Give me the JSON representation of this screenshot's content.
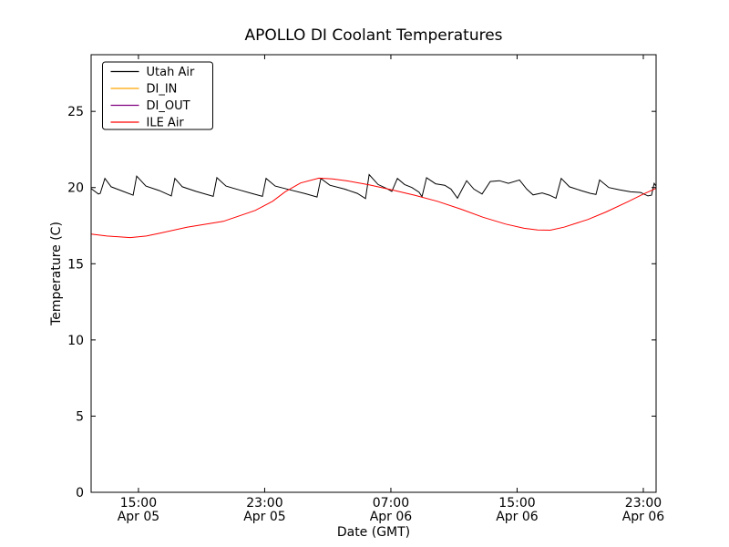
{
  "window": {
    "background": "#ffffff"
  },
  "chart_data": {
    "type": "line",
    "title": "APOLLO DI Coolant Temperatures",
    "xlabel": "Date (GMT)",
    "ylabel": "Temperature (C)",
    "x_unit": "hours since Apr 05 00:00 GMT",
    "xlim": [
      12.0,
      47.81
    ],
    "ylim": [
      0,
      28.72
    ],
    "yticks": [
      0,
      5,
      10,
      15,
      20,
      25
    ],
    "xticks": [
      {
        "t": 15,
        "time": "15:00",
        "date": "Apr 05"
      },
      {
        "t": 23,
        "time": "23:00",
        "date": "Apr 05"
      },
      {
        "t": 31,
        "time": "07:00",
        "date": "Apr 06"
      },
      {
        "t": 39,
        "time": "15:00",
        "date": "Apr 06"
      },
      {
        "t": 47,
        "time": "23:00",
        "date": "Apr 06"
      }
    ],
    "grid": false,
    "legend_position": "upper left",
    "axis_color": "#000000",
    "series": [
      {
        "name": "Utah Air",
        "color": "#000000",
        "points": [
          [
            12.0,
            19.93
          ],
          [
            12.46,
            19.58
          ],
          [
            12.58,
            19.62
          ],
          [
            12.87,
            20.6
          ],
          [
            13.27,
            20.05
          ],
          [
            13.91,
            19.8
          ],
          [
            14.66,
            19.5
          ],
          [
            14.89,
            20.75
          ],
          [
            15.47,
            20.1
          ],
          [
            16.33,
            19.8
          ],
          [
            17.08,
            19.45
          ],
          [
            17.31,
            20.6
          ],
          [
            17.78,
            20.05
          ],
          [
            18.64,
            19.75
          ],
          [
            19.74,
            19.42
          ],
          [
            19.97,
            20.65
          ],
          [
            20.55,
            20.1
          ],
          [
            21.36,
            19.85
          ],
          [
            22.17,
            19.62
          ],
          [
            22.86,
            19.42
          ],
          [
            23.09,
            20.6
          ],
          [
            23.67,
            20.1
          ],
          [
            24.59,
            19.85
          ],
          [
            25.57,
            19.6
          ],
          [
            26.32,
            19.38
          ],
          [
            26.56,
            20.6
          ],
          [
            27.13,
            20.15
          ],
          [
            28.06,
            19.9
          ],
          [
            28.87,
            19.62
          ],
          [
            29.39,
            19.28
          ],
          [
            29.62,
            20.85
          ],
          [
            30.19,
            20.2
          ],
          [
            30.71,
            19.95
          ],
          [
            31.06,
            19.75
          ],
          [
            31.41,
            20.6
          ],
          [
            31.87,
            20.2
          ],
          [
            32.33,
            20.0
          ],
          [
            32.79,
            19.7
          ],
          [
            32.97,
            19.4
          ],
          [
            33.26,
            20.65
          ],
          [
            33.83,
            20.25
          ],
          [
            34.41,
            20.15
          ],
          [
            34.81,
            19.9
          ],
          [
            35.22,
            19.3
          ],
          [
            35.8,
            20.45
          ],
          [
            36.26,
            19.9
          ],
          [
            36.78,
            19.58
          ],
          [
            37.3,
            20.4
          ],
          [
            37.88,
            20.45
          ],
          [
            38.45,
            20.28
          ],
          [
            39.15,
            20.5
          ],
          [
            39.61,
            19.9
          ],
          [
            40.01,
            19.52
          ],
          [
            40.59,
            19.65
          ],
          [
            41.05,
            19.5
          ],
          [
            41.46,
            19.3
          ],
          [
            41.8,
            20.6
          ],
          [
            42.32,
            20.05
          ],
          [
            43.07,
            19.8
          ],
          [
            43.65,
            19.62
          ],
          [
            44.0,
            19.55
          ],
          [
            44.23,
            20.5
          ],
          [
            44.81,
            20.0
          ],
          [
            45.5,
            19.85
          ],
          [
            46.19,
            19.72
          ],
          [
            46.83,
            19.68
          ],
          [
            47.29,
            19.45
          ],
          [
            47.52,
            19.5
          ],
          [
            47.69,
            20.28
          ],
          [
            47.81,
            20.1
          ]
        ]
      },
      {
        "name": "DI_IN",
        "color": "#ffa500",
        "points": []
      },
      {
        "name": "DI_OUT",
        "color": "#800080",
        "points": []
      },
      {
        "name": "ILE Air",
        "color": "#ff0000",
        "points": [
          [
            12.0,
            16.95
          ],
          [
            13.0,
            16.82
          ],
          [
            14.48,
            16.72
          ],
          [
            15.5,
            16.82
          ],
          [
            16.33,
            17.0
          ],
          [
            18.07,
            17.4
          ],
          [
            20.38,
            17.78
          ],
          [
            22.4,
            18.5
          ],
          [
            23.5,
            19.1
          ],
          [
            24.3,
            19.73
          ],
          [
            25.28,
            20.3
          ],
          [
            26.44,
            20.62
          ],
          [
            27.3,
            20.57
          ],
          [
            28.17,
            20.45
          ],
          [
            29.62,
            20.18
          ],
          [
            31.06,
            19.85
          ],
          [
            32.5,
            19.5
          ],
          [
            33.95,
            19.1
          ],
          [
            35.39,
            18.6
          ],
          [
            36.84,
            18.05
          ],
          [
            38.28,
            17.6
          ],
          [
            39.44,
            17.33
          ],
          [
            40.3,
            17.22
          ],
          [
            41.1,
            17.2
          ],
          [
            41.97,
            17.4
          ],
          [
            43.48,
            17.9
          ],
          [
            44.64,
            18.4
          ],
          [
            46.08,
            19.1
          ],
          [
            46.95,
            19.55
          ],
          [
            47.81,
            19.95
          ]
        ]
      }
    ]
  }
}
